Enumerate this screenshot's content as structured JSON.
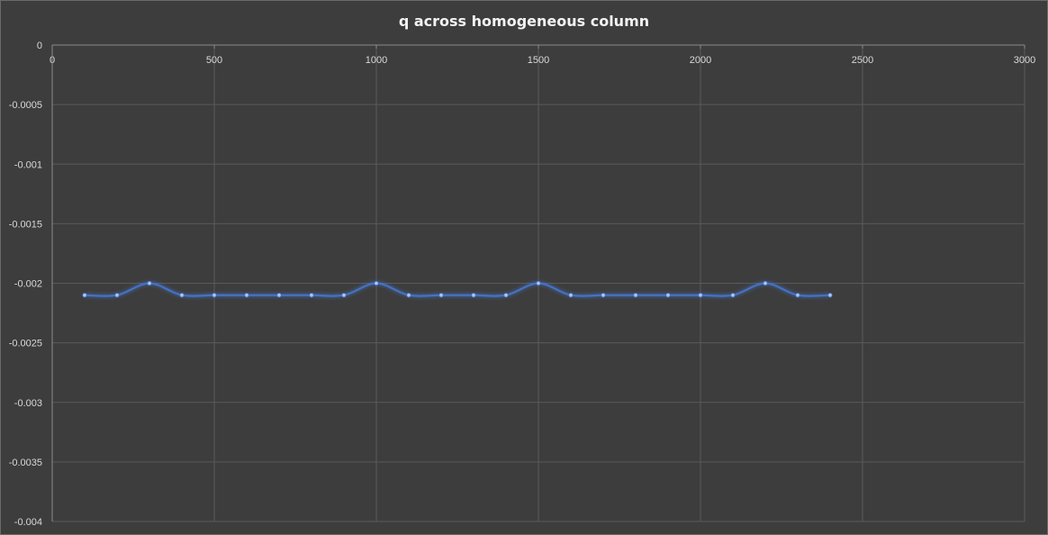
{
  "chart_data": {
    "type": "scatter",
    "title": "q across homogeneous column",
    "xlabel": "",
    "ylabel": "",
    "xlim": [
      0,
      3000
    ],
    "ylim": [
      -0.004,
      0
    ],
    "x_ticks": [
      0,
      500,
      1000,
      1500,
      2000,
      2500,
      3000
    ],
    "y_ticks": [
      0,
      -0.0005,
      -0.001,
      -0.0015,
      -0.002,
      -0.0025,
      -0.003,
      -0.0035,
      -0.004
    ],
    "x_axis_position": "top",
    "grid": true,
    "line_style": "smooth",
    "series": [
      {
        "color": "#4472c4",
        "x": [
          100,
          200,
          300,
          400,
          500,
          600,
          700,
          800,
          900,
          1000,
          1100,
          1200,
          1300,
          1400,
          1500,
          1600,
          1700,
          1800,
          1900,
          2000,
          2100,
          2200,
          2300,
          2400
        ],
        "y": [
          -0.0021,
          -0.0021,
          -0.002,
          -0.0021,
          -0.0021,
          -0.0021,
          -0.0021,
          -0.0021,
          -0.0021,
          -0.002,
          -0.0021,
          -0.0021,
          -0.0021,
          -0.0021,
          -0.002,
          -0.0021,
          -0.0021,
          -0.0021,
          -0.0021,
          -0.0021,
          -0.0021,
          -0.002,
          -0.0021,
          -0.0021
        ]
      }
    ]
  }
}
